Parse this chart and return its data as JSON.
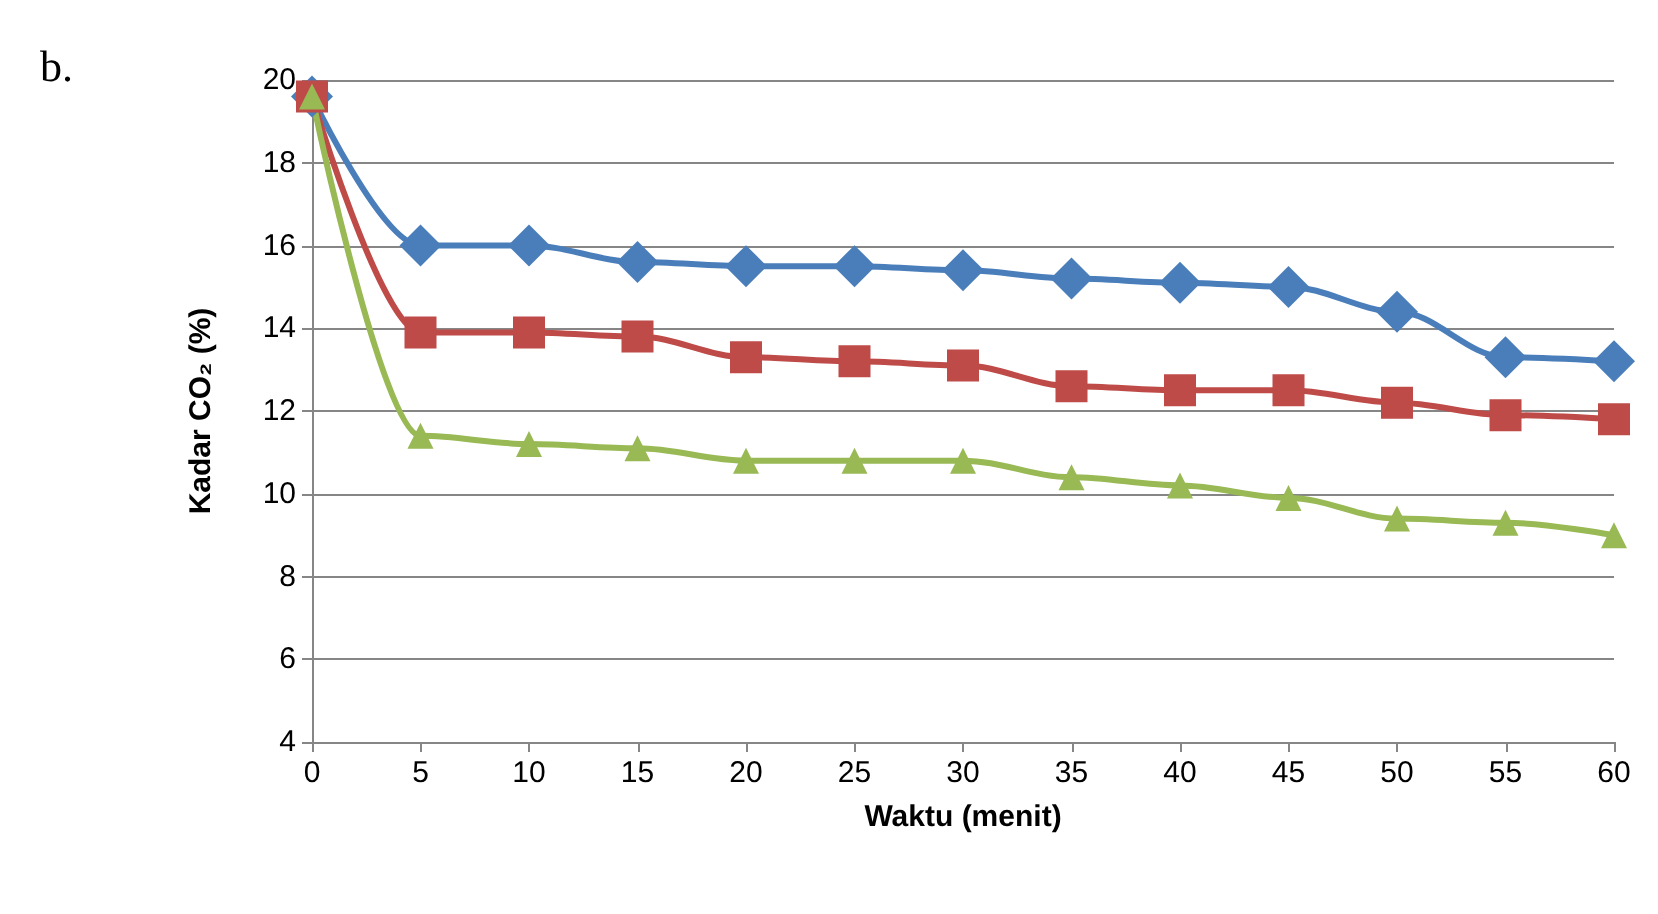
{
  "chart_data": {
    "type": "line",
    "annotations": [
      "b."
    ],
    "xlabel": "Waktu (menit)",
    "ylabel": "Kadar CO₂ (%)",
    "x": [
      0,
      5,
      10,
      15,
      20,
      25,
      30,
      35,
      40,
      45,
      50,
      55,
      60
    ],
    "xlim": [
      0,
      60
    ],
    "xticks": [
      0,
      5,
      10,
      15,
      20,
      25,
      30,
      35,
      40,
      45,
      50,
      55,
      60
    ],
    "ylim": [
      4,
      20
    ],
    "yticks": [
      4,
      6,
      8,
      10,
      12,
      14,
      16,
      18,
      20
    ],
    "grid": "y",
    "series": [
      {
        "color": "#4a7ebb",
        "marker": "diamond",
        "values": [
          19.6,
          16.0,
          16.0,
          15.6,
          15.5,
          15.5,
          15.4,
          15.2,
          15.1,
          15.0,
          14.4,
          13.3,
          13.2
        ]
      },
      {
        "color": "#be4b48",
        "marker": "square",
        "values": [
          19.6,
          13.9,
          13.9,
          13.8,
          13.3,
          13.2,
          13.1,
          12.6,
          12.5,
          12.5,
          12.2,
          11.9,
          11.8
        ]
      },
      {
        "color": "#98b954",
        "marker": "triangle",
        "values": [
          19.6,
          11.4,
          11.2,
          11.1,
          10.8,
          10.8,
          10.8,
          10.4,
          10.2,
          9.9,
          9.4,
          9.3,
          9.0
        ]
      }
    ]
  }
}
